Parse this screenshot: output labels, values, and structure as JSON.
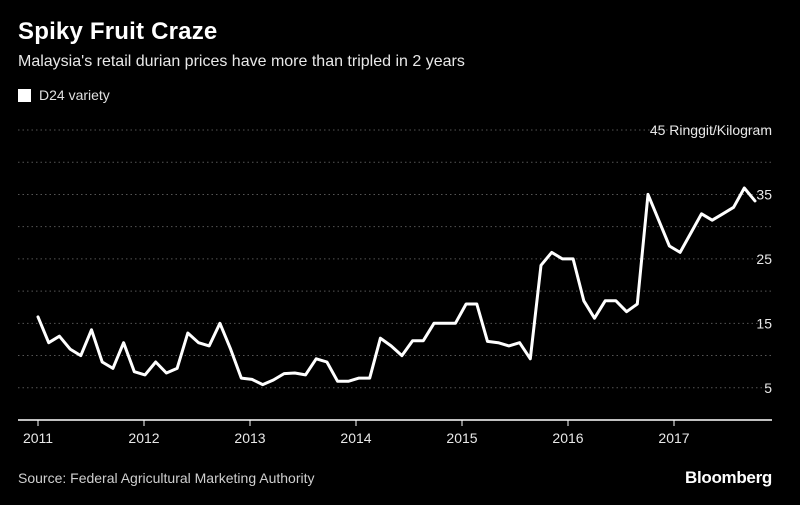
{
  "colors": {
    "background": "#000000",
    "line": "#ffffff",
    "grid": "#555555",
    "axis": "#ffffff",
    "text": "#ffffff"
  },
  "chart_data": {
    "type": "line",
    "title": "Spiky Fruit Craze",
    "subtitle": "Malaysia's retail durian prices have more than tripled in 2 years",
    "ylabel": "45 Ringgit/Kilogram",
    "xlabel": "",
    "ylim": [
      0,
      45
    ],
    "yticks": [
      5,
      15,
      25,
      35
    ],
    "grid": true,
    "legend": "top-left",
    "x_ticks": [
      "2011",
      "2012",
      "2013",
      "2014",
      "2015",
      "2016",
      "2017"
    ],
    "x_range": [
      2011.0,
      2018.0
    ],
    "series": [
      {
        "name": "D24 variety",
        "x": [
          2011.0,
          2011.1,
          2011.2,
          2011.3,
          2011.4,
          2011.5,
          2011.6,
          2011.7,
          2011.8,
          2011.9,
          2012.0,
          2012.1,
          2012.2,
          2012.3,
          2012.4,
          2012.5,
          2012.6,
          2012.7,
          2012.8,
          2012.9,
          2013.0,
          2013.1,
          2013.2,
          2013.3,
          2013.4,
          2013.5,
          2013.6,
          2013.7,
          2013.8,
          2013.9,
          2014.0,
          2014.1,
          2014.2,
          2014.3,
          2014.4,
          2014.5,
          2014.6,
          2014.7,
          2014.8,
          2014.9,
          2015.0,
          2015.1,
          2015.2,
          2015.3,
          2015.4,
          2015.5,
          2015.6,
          2015.7,
          2015.8,
          2015.9,
          2016.0,
          2016.1,
          2016.2,
          2016.3,
          2016.4,
          2016.5,
          2016.6,
          2016.7,
          2016.8,
          2016.9,
          2017.0,
          2017.1,
          2017.2,
          2017.3,
          2017.4,
          2017.5,
          2017.6,
          2017.7
        ],
        "values": [
          16,
          12,
          13,
          11,
          10,
          14,
          9,
          8,
          12,
          7.5,
          7,
          9,
          7.3,
          8,
          13.5,
          12,
          11.5,
          15,
          11,
          6.5,
          6.3,
          5.5,
          6.2,
          7.2,
          7.3,
          7,
          9.5,
          9,
          6,
          6,
          6.5,
          6.5,
          12.7,
          11.5,
          10,
          12.3,
          12.3,
          15,
          15,
          15,
          18,
          18,
          12.2,
          12,
          11.5,
          12,
          9.5,
          24,
          26,
          25,
          25,
          18.5,
          15.8,
          18.5,
          18.5,
          16.8,
          18,
          35,
          31,
          27,
          26,
          29,
          32,
          31,
          32,
          33,
          36,
          34
        ]
      }
    ]
  },
  "source": "Source: Federal Agricultural Marketing Authority",
  "brand": "Bloomberg"
}
